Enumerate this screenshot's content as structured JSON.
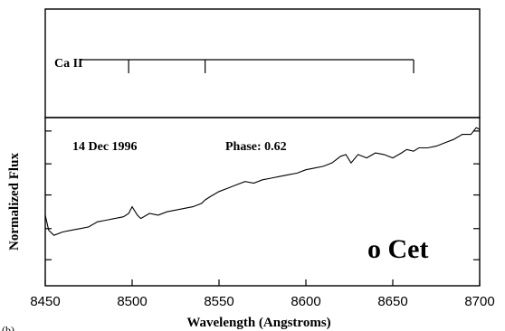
{
  "chart_data": {
    "type": "line",
    "xlabel": "Wavelength (Angstroms)",
    "ylabel": "Normalized Flux",
    "xlim": [
      8450,
      8700
    ],
    "x_ticks": [
      8450,
      8500,
      8550,
      8600,
      8650,
      8700
    ],
    "tick_labels": [
      "8450",
      "8500",
      "8550",
      "8600",
      "8650",
      "8700"
    ],
    "y_ticks_fraction": [
      0.155,
      0.34,
      0.54,
      0.725,
      0.92
    ],
    "grid": false,
    "date_label": "14 Dec 1996",
    "phase_label": "Phase: 0.62",
    "star_label": "o Cet",
    "panel_tag": "(b)",
    "line_id": {
      "label": "Ca II",
      "wavelengths": [
        8498,
        8542,
        8662
      ]
    },
    "series": [
      {
        "x": [
          8450,
          8452,
          8455,
          8460,
          8465,
          8470,
          8475,
          8480,
          8485,
          8490,
          8495,
          8498,
          8500,
          8503,
          8505,
          8510,
          8515,
          8520,
          8525,
          8530,
          8535,
          8540,
          8542,
          8545,
          8550,
          8555,
          8560,
          8565,
          8570,
          8575,
          8580,
          8585,
          8590,
          8595,
          8600,
          8605,
          8610,
          8615,
          8620,
          8623,
          8626,
          8630,
          8635,
          8640,
          8645,
          8650,
          8655,
          8658,
          8662,
          8665,
          8670,
          8675,
          8680,
          8685,
          8690,
          8695,
          8698,
          8700
        ],
        "y": [
          0.42,
          0.33,
          0.3,
          0.32,
          0.33,
          0.34,
          0.35,
          0.38,
          0.39,
          0.4,
          0.41,
          0.43,
          0.47,
          0.42,
          0.4,
          0.43,
          0.42,
          0.44,
          0.45,
          0.46,
          0.47,
          0.49,
          0.51,
          0.53,
          0.56,
          0.58,
          0.6,
          0.62,
          0.61,
          0.63,
          0.64,
          0.65,
          0.66,
          0.67,
          0.69,
          0.7,
          0.71,
          0.73,
          0.77,
          0.78,
          0.73,
          0.78,
          0.76,
          0.79,
          0.78,
          0.76,
          0.79,
          0.81,
          0.8,
          0.82,
          0.82,
          0.83,
          0.85,
          0.87,
          0.9,
          0.9,
          0.94,
          0.93
        ]
      }
    ]
  }
}
